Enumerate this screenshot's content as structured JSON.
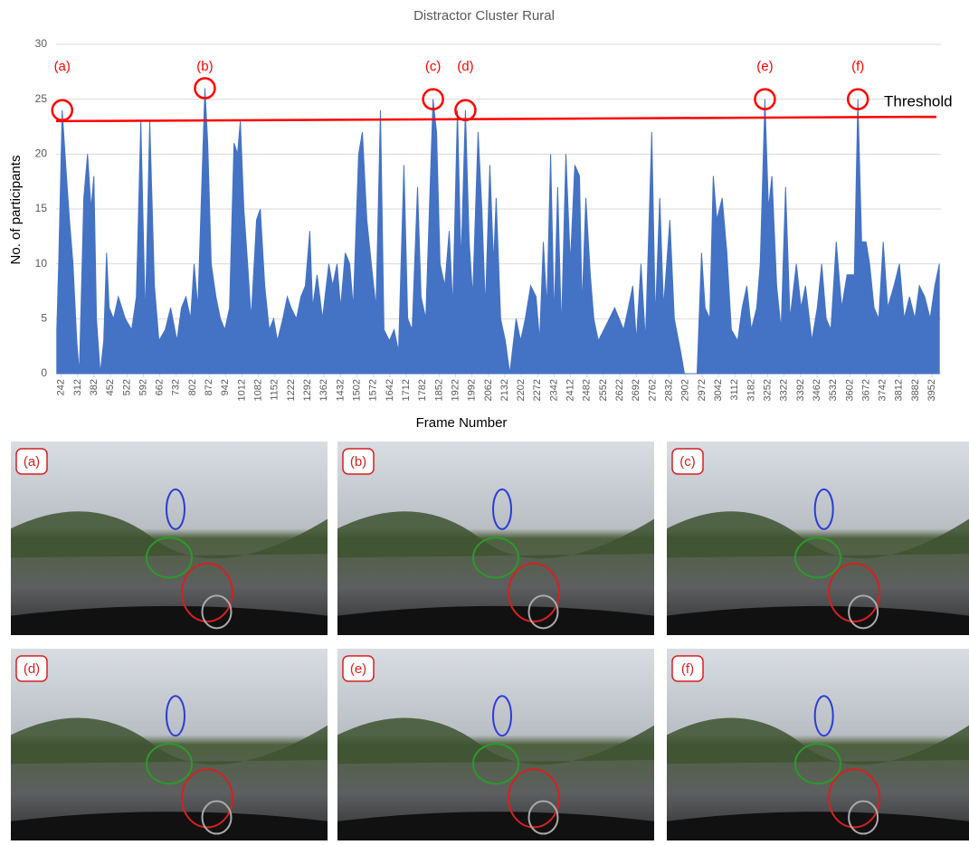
{
  "chart_data": {
    "type": "area",
    "title": "Distractor Cluster Rural",
    "x_label": "Frame Number",
    "y_label": "No. of participants",
    "color": "#4472c4",
    "grid": true,
    "xlim": [
      220,
      3990
    ],
    "ylim": [
      0,
      30
    ],
    "yticks": [
      0,
      5,
      10,
      15,
      20,
      25,
      30
    ],
    "xticks": [
      242,
      312,
      382,
      452,
      522,
      592,
      662,
      732,
      802,
      872,
      942,
      1012,
      1082,
      1152,
      1222,
      1292,
      1362,
      1432,
      1502,
      1572,
      1642,
      1712,
      1782,
      1852,
      1922,
      1992,
      2062,
      2132,
      2202,
      2272,
      2342,
      2412,
      2482,
      2552,
      2622,
      2692,
      2762,
      2832,
      2902,
      2972,
      3042,
      3112,
      3182,
      3252,
      3322,
      3392,
      3462,
      3532,
      3602,
      3672,
      3742,
      3812,
      3882,
      3952
    ],
    "x": [
      223,
      231,
      246,
      261,
      277,
      292,
      308,
      319,
      338,
      354,
      369,
      381,
      392,
      408,
      423,
      435,
      446,
      465,
      485,
      515,
      542,
      562,
      581,
      600,
      619,
      639,
      658,
      685,
      708,
      735,
      754,
      773,
      793,
      808,
      824,
      854,
      866,
      881,
      901,
      920,
      939,
      959,
      978,
      993,
      1005,
      1020,
      1036,
      1051,
      1074,
      1090,
      1109,
      1128,
      1147,
      1163,
      1186,
      1205,
      1221,
      1244,
      1263,
      1282,
      1301,
      1313,
      1332,
      1355,
      1382,
      1398,
      1417,
      1432,
      1452,
      1471,
      1486,
      1509,
      1525,
      1544,
      1563,
      1583,
      1602,
      1617,
      1640,
      1660,
      1679,
      1702,
      1718,
      1737,
      1760,
      1775,
      1795,
      1826,
      1841,
      1856,
      1876,
      1895,
      1910,
      1930,
      1945,
      1964,
      1980,
      1995,
      2018,
      2034,
      2049,
      2068,
      2084,
      2095,
      2114,
      2134,
      2153,
      2180,
      2199,
      2219,
      2242,
      2265,
      2280,
      2296,
      2311,
      2327,
      2342,
      2357,
      2373,
      2392,
      2411,
      2430,
      2450,
      2461,
      2477,
      2496,
      2511,
      2530,
      2554,
      2577,
      2600,
      2619,
      2638,
      2658,
      2677,
      2692,
      2712,
      2731,
      2758,
      2773,
      2792,
      2808,
      2835,
      2854,
      2881,
      2897,
      2951,
      2970,
      2985,
      3005,
      3020,
      3035,
      3058,
      3078,
      3097,
      3124,
      3143,
      3163,
      3182,
      3205,
      3220,
      3240,
      3255,
      3270,
      3290,
      3309,
      3328,
      3347,
      3374,
      3394,
      3413,
      3440,
      3463,
      3482,
      3501,
      3521,
      3544,
      3567,
      3590,
      3621,
      3636,
      3652,
      3671,
      3686,
      3705,
      3725,
      3744,
      3763,
      3790,
      3813,
      3833,
      3856,
      3879,
      3898,
      3921,
      3944,
      3964,
      3983
    ],
    "values": [
      4,
      10,
      24,
      19,
      14,
      10,
      3,
      0,
      16,
      20,
      15,
      18,
      5,
      0,
      3,
      11,
      6,
      5,
      7,
      5,
      4,
      7,
      23,
      5,
      23,
      8,
      3,
      4,
      6,
      3,
      6,
      7,
      5,
      10,
      6,
      26,
      21,
      10,
      7,
      5,
      4,
      6,
      21,
      20,
      23,
      15,
      10,
      5,
      14,
      15,
      8,
      4,
      5,
      3,
      5,
      7,
      6,
      5,
      7,
      8,
      13,
      6,
      9,
      5,
      10,
      8,
      10,
      6,
      11,
      10,
      6,
      20,
      22,
      14,
      10,
      6,
      24,
      4,
      3,
      4,
      2,
      19,
      5,
      4,
      17,
      7,
      5,
      25,
      22,
      10,
      8,
      13,
      6,
      24,
      10,
      24,
      12,
      7,
      22,
      15,
      6,
      19,
      10,
      16,
      5,
      3,
      0,
      5,
      3,
      5,
      8,
      7,
      3,
      12,
      6,
      20,
      5,
      17,
      4,
      20,
      10,
      19,
      18,
      6,
      16,
      9,
      5,
      3,
      4,
      5,
      6,
      5,
      4,
      6,
      8,
      3,
      10,
      3,
      22,
      5,
      16,
      6,
      14,
      5,
      2,
      0,
      0,
      11,
      6,
      5,
      18,
      14,
      16,
      11,
      4,
      3,
      6,
      8,
      4,
      6,
      10,
      25,
      15,
      18,
      8,
      4,
      17,
      5,
      10,
      6,
      8,
      3,
      6,
      10,
      5,
      4,
      12,
      6,
      9,
      9,
      25,
      12,
      12,
      10,
      6,
      5,
      12,
      6,
      8,
      10,
      5,
      7,
      5,
      8,
      7,
      5,
      8,
      10
    ],
    "threshold": {
      "label": "Threshold",
      "color": "#ff0000",
      "start": 23,
      "end": 23.4
    },
    "annotations": [
      {
        "label": "(a)",
        "x": 246,
        "y": 24
      },
      {
        "label": "(b)",
        "x": 854,
        "y": 26
      },
      {
        "label": "(c)",
        "x": 1826,
        "y": 25
      },
      {
        "label": "(d)",
        "x": 1964,
        "y": 24
      },
      {
        "label": "(e)",
        "x": 3240,
        "y": 25
      },
      {
        "label": "(f)",
        "x": 3636,
        "y": 25
      }
    ]
  },
  "panels": [
    {
      "label": "(a)"
    },
    {
      "label": "(b)"
    },
    {
      "label": "(c)"
    },
    {
      "label": "(d)"
    },
    {
      "label": "(e)"
    },
    {
      "label": "(f)"
    }
  ]
}
